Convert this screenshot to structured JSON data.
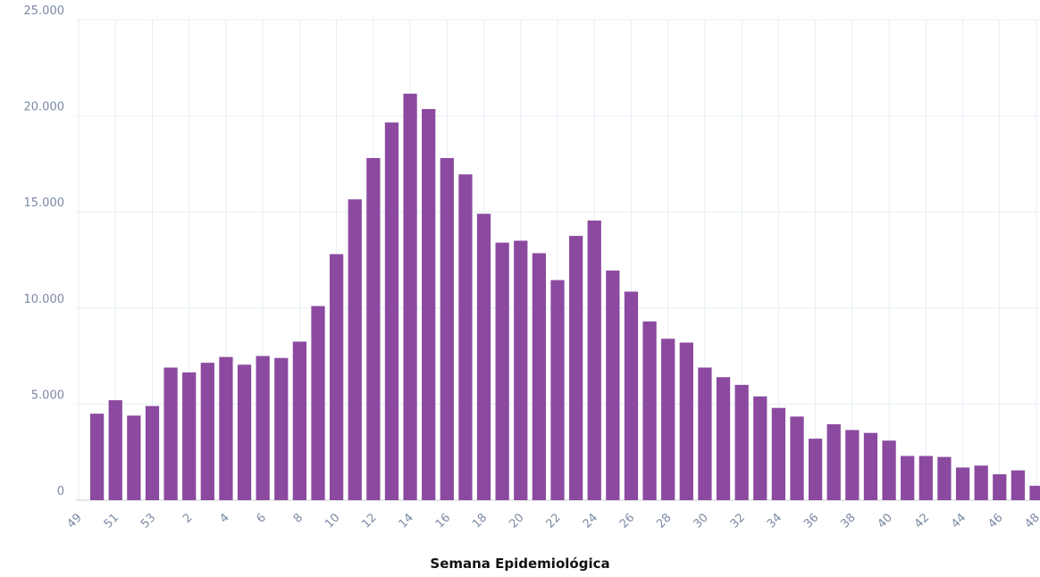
{
  "chart_data": {
    "type": "bar",
    "x_label": "Semana Epidemiológica",
    "categories": [
      "49",
      null,
      "51",
      null,
      "53",
      null,
      "2",
      null,
      "4",
      null,
      "6",
      null,
      "8",
      null,
      "10",
      null,
      "12",
      null,
      "14",
      null,
      "16",
      null,
      "18",
      null,
      "20",
      null,
      "22",
      null,
      "24",
      null,
      "26",
      null,
      "28",
      null,
      "30",
      null,
      "32",
      null,
      "34",
      null,
      "36",
      null,
      "38",
      null,
      "40",
      null,
      "42",
      null,
      "44",
      null,
      "46",
      null,
      "48"
    ],
    "values": [
      null,
      4500,
      5200,
      4400,
      4900,
      6900,
      6650,
      7150,
      7450,
      7050,
      7500,
      7400,
      8250,
      10100,
      12800,
      15650,
      17800,
      19650,
      21150,
      20350,
      17800,
      16950,
      14900,
      13400,
      13500,
      12850,
      11450,
      13750,
      14550,
      11950,
      10850,
      9300,
      8400,
      8200,
      6900,
      6400,
      6000,
      5400,
      4800,
      4350,
      3200,
      3950,
      3650,
      3500,
      3100,
      2300,
      2300,
      2250,
      1700,
      1800,
      1350,
      1550,
      750
    ],
    "color": "#8b4a9f",
    "ylim": [
      0,
      25000
    ],
    "yticks": [
      0,
      {
        "value": 5000,
        "label": "5.000"
      },
      {
        "value": 10000,
        "label": "10.000"
      },
      {
        "value": 15000,
        "label": "15.000"
      },
      {
        "value": 20000,
        "label": "20.000"
      },
      {
        "value": 25000,
        "label": "25.000"
      }
    ],
    "grid": true
  }
}
